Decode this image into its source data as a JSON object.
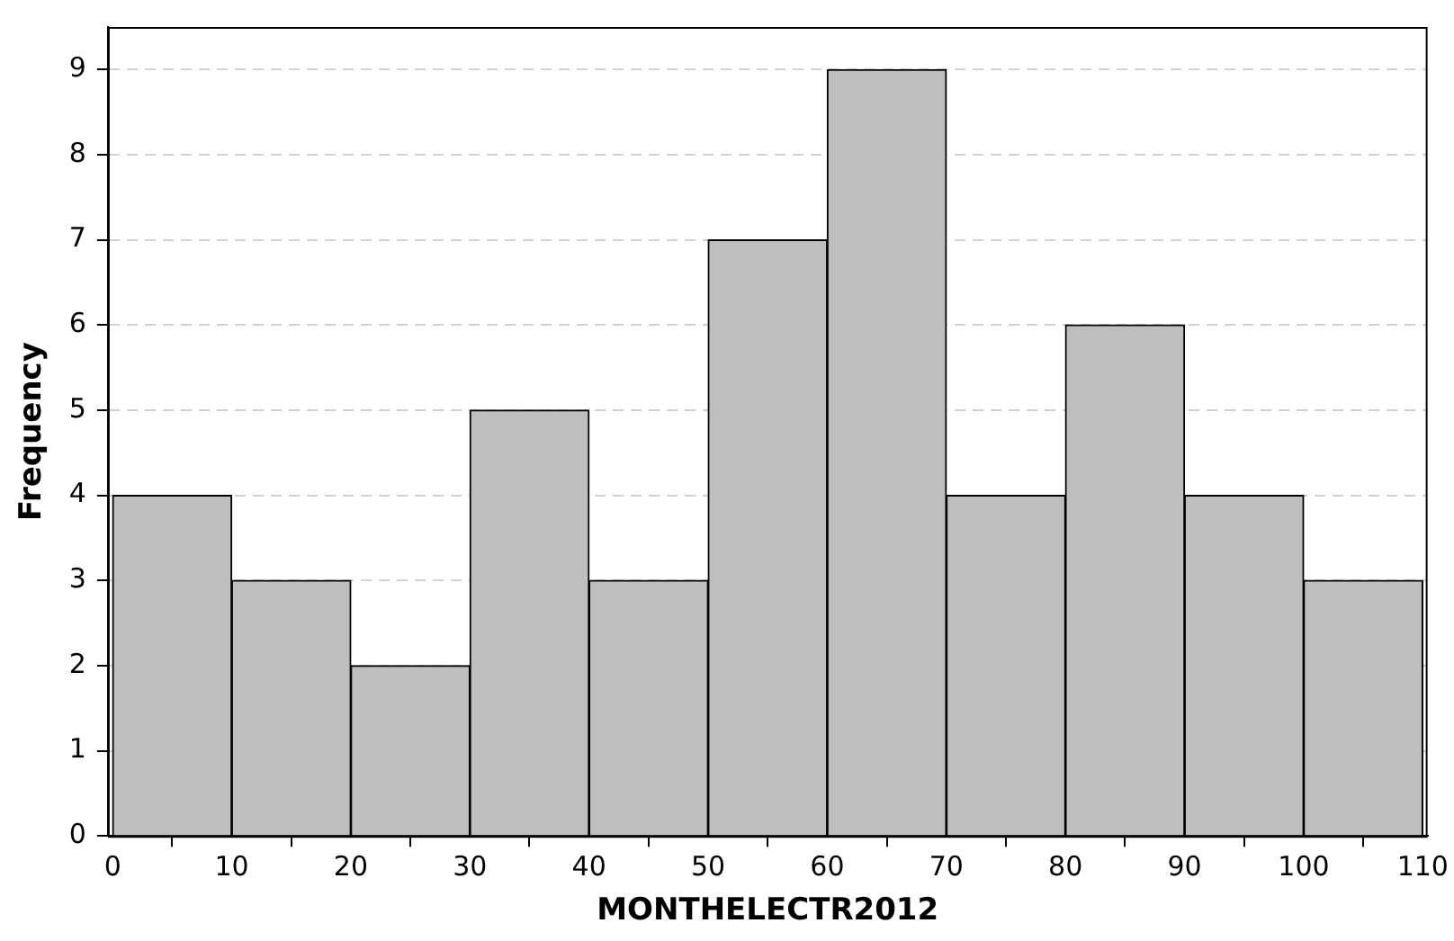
{
  "chart_data": {
    "type": "histogram",
    "xlabel": "MONTHELECTR2012",
    "ylabel": "Frequency",
    "bins": [
      0,
      10,
      20,
      30,
      40,
      50,
      60,
      70,
      80,
      90,
      100,
      110
    ],
    "values": [
      4,
      3,
      2,
      5,
      3,
      7,
      9,
      4,
      6,
      4,
      3
    ],
    "color": "#bebebe",
    "xlim": [
      -0.4,
      110.4
    ],
    "xticks": [
      0,
      10,
      20,
      30,
      40,
      50,
      60,
      70,
      80,
      90,
      100,
      110
    ],
    "ylim": [
      0,
      9.5
    ],
    "yticks": [
      0,
      1,
      2,
      3,
      4,
      5,
      6,
      7,
      8,
      9
    ],
    "grid": "y"
  }
}
